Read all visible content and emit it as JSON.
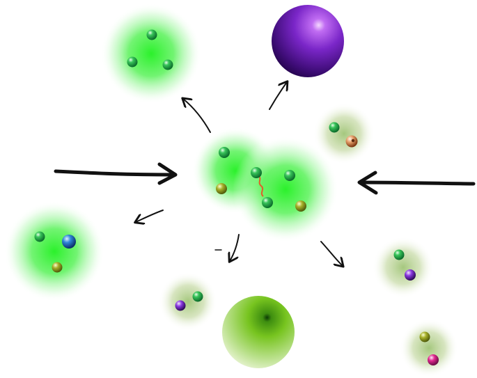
{
  "diagram": {
    "incoming_particles": [
      {
        "direction": "from-left",
        "color": "#2a2a2a"
      },
      {
        "direction": "from-right",
        "color": "#2a2a2a"
      }
    ],
    "collision_region": {
      "clouds": 2,
      "quarks": [
        {
          "color": "#2bb24c"
        },
        {
          "color": "#a7b02a"
        },
        {
          "color": "#2bb24c"
        },
        {
          "color": "#2bb24c"
        },
        {
          "color": "#a7b02a"
        },
        {
          "color": "#2bb24c"
        }
      ],
      "gluon_string_color": "#e0602a"
    },
    "products": [
      {
        "kind": "baryon",
        "quarks": [
          "green",
          "green",
          "green"
        ]
      },
      {
        "kind": "purple-sphere"
      },
      {
        "kind": "meson",
        "quarks": [
          "green",
          "orange"
        ]
      },
      {
        "kind": "baryon",
        "quarks": [
          "green",
          "blue",
          "olive"
        ]
      },
      {
        "kind": "meson",
        "quarks": [
          "green",
          "purple"
        ]
      },
      {
        "kind": "meson",
        "quarks": [
          "purple",
          "green"
        ]
      },
      {
        "kind": "green-sphere"
      },
      {
        "kind": "meson",
        "quarks": [
          "olive",
          "magenta"
        ]
      }
    ],
    "colors": {
      "cloud_green": "#2aff2a",
      "cloud_olive": "#6f9a1a",
      "purple_sphere": "#7a26c8",
      "green_sphere": "#77c41f",
      "arrow": "#111111"
    }
  }
}
